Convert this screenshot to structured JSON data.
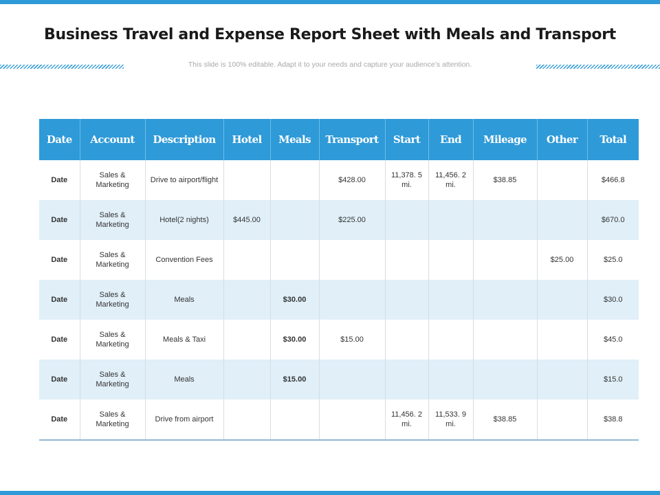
{
  "title": "Business Travel and Expense Report Sheet with Meals and Transport",
  "subtitle": "This slide is 100% editable. Adapt it to your needs and capture your audience’s attention.",
  "colors": {
    "accent": "#2e9ad8",
    "alt_row": "#e0eff8",
    "meals_text": "#2e9ad8"
  },
  "table": {
    "headers": [
      "Date",
      "Account",
      "Description",
      "Hotel",
      "Meals",
      "Transport",
      "Start",
      "End",
      "Mileage",
      "Other",
      "Total"
    ],
    "rows": [
      [
        "Date",
        "Sales & Marketing",
        "Drive to airport/flight",
        "",
        "",
        "$428.00",
        "11,378. 5 mi.",
        "11,456. 2 mi.",
        "$38.85",
        "",
        "$466.8"
      ],
      [
        "Date",
        "Sales & Marketing",
        "Hotel(2 nights)",
        "$445.00",
        "",
        "$225.00",
        "",
        "",
        "",
        "",
        "$670.0"
      ],
      [
        "Date",
        "Sales & Marketing",
        "Convention Fees",
        "",
        "",
        "",
        "",
        "",
        "",
        "$25.00",
        "$25.0"
      ],
      [
        "Date",
        "Sales & Marketing",
        "Meals",
        "",
        "$30.00",
        "",
        "",
        "",
        "",
        "",
        "$30.0"
      ],
      [
        "Date",
        "Sales & Marketing",
        "Meals & Taxi",
        "",
        "$30.00",
        "$15.00",
        "",
        "",
        "",
        "",
        "$45.0"
      ],
      [
        "Date",
        "Sales & Marketing",
        "Meals",
        "",
        "$15.00",
        "",
        "",
        "",
        "",
        "",
        "$15.0"
      ],
      [
        "Date",
        "Sales & Marketing",
        "Drive from airport",
        "",
        "",
        "",
        "11,456. 2 mi.",
        "11,533. 9 mi.",
        "$38.85",
        "",
        "$38.8"
      ]
    ]
  }
}
